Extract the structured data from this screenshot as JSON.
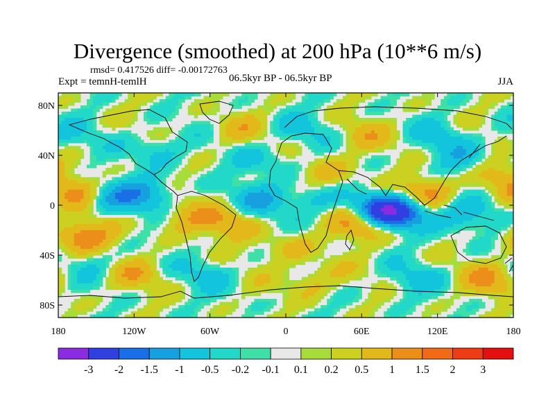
{
  "chart_data": {
    "type": "heatmap",
    "title": "Divergence (smoothed) at 200 hPa (10**6 m/s)",
    "stats": "rmsd= 0.417526  diff= -0.00172763",
    "experiment": "Expt = temnH-temlH",
    "period": "06.5kyr BP - 06.5kyr BP",
    "season": "JJA",
    "xlim": [
      -180,
      180
    ],
    "ylim": [
      -90,
      90
    ],
    "x_ticks": [
      {
        "value": -180,
        "label": "180"
      },
      {
        "value": -120,
        "label": "120W"
      },
      {
        "value": -60,
        "label": "60W"
      },
      {
        "value": 0,
        "label": "0"
      },
      {
        "value": 60,
        "label": "60E"
      },
      {
        "value": 120,
        "label": "120E"
      },
      {
        "value": 180,
        "label": "180"
      }
    ],
    "y_ticks": [
      {
        "value": 80,
        "label": "80N"
      },
      {
        "value": 40,
        "label": "40N"
      },
      {
        "value": 0,
        "label": "0"
      },
      {
        "value": -40,
        "label": "40S"
      },
      {
        "value": -80,
        "label": "80S"
      }
    ],
    "colorbar": {
      "labels": [
        "-3",
        "-2",
        "-1.5",
        "-1",
        "-0.5",
        "-0.2",
        "-0.1",
        "0.1",
        "0.2",
        "0.5",
        "1",
        "1.5",
        "2",
        "3"
      ],
      "colors": [
        "#8b2be2",
        "#2f3fe0",
        "#1a6fe6",
        "#16a0e0",
        "#12c4dc",
        "#22d8c8",
        "#3fe0a8",
        "#e8e8e8",
        "#a8dc3a",
        "#cbd021",
        "#e2b81a",
        "#ec8f1a",
        "#f06a18",
        "#ee3d14",
        "#e41010"
      ]
    },
    "field_centers": [
      {
        "lon": 75,
        "lat": -5,
        "value": -2.2
      },
      {
        "lon": 95,
        "lat": -5,
        "value": -1.6
      },
      {
        "lon": 60,
        "lat": -15,
        "value": 1.4
      },
      {
        "lon": 110,
        "lat": 10,
        "value": 1.2
      },
      {
        "lon": -160,
        "lat": -25,
        "value": 1.5
      },
      {
        "lon": -165,
        "lat": 10,
        "value": 1.0
      },
      {
        "lon": -140,
        "lat": 5,
        "value": -1.0
      },
      {
        "lon": -110,
        "lat": 10,
        "value": -1.1
      },
      {
        "lon": -80,
        "lat": -10,
        "value": 0.8
      },
      {
        "lon": -45,
        "lat": -15,
        "value": 0.9
      },
      {
        "lon": -20,
        "lat": 5,
        "value": -0.9
      },
      {
        "lon": 20,
        "lat": 5,
        "value": -0.8
      },
      {
        "lon": 35,
        "lat": 25,
        "value": 0.7
      },
      {
        "lon": 140,
        "lat": -10,
        "value": -0.9
      },
      {
        "lon": 165,
        "lat": 25,
        "value": 0.8
      },
      {
        "lon": -100,
        "lat": 45,
        "value": -0.7
      },
      {
        "lon": -40,
        "lat": 60,
        "value": 0.6
      },
      {
        "lon": 10,
        "lat": 60,
        "value": -0.6
      },
      {
        "lon": 60,
        "lat": 55,
        "value": 0.6
      },
      {
        "lon": 120,
        "lat": 55,
        "value": -0.6
      },
      {
        "lon": -120,
        "lat": -55,
        "value": 0.7
      },
      {
        "lon": -60,
        "lat": -55,
        "value": -0.6
      },
      {
        "lon": 20,
        "lat": -60,
        "value": 0.7
      },
      {
        "lon": 100,
        "lat": -60,
        "value": -0.6
      },
      {
        "lon": 160,
        "lat": -60,
        "value": 0.9
      },
      {
        "lon": -175,
        "lat": 55,
        "value": -0.5
      },
      {
        "lon": 0,
        "lat": -35,
        "value": 0.6
      },
      {
        "lon": -150,
        "lat": -45,
        "value": -0.5
      },
      {
        "lon": 140,
        "lat": 35,
        "value": -0.7
      },
      {
        "lon": -20,
        "lat": 35,
        "value": -0.6
      }
    ]
  }
}
